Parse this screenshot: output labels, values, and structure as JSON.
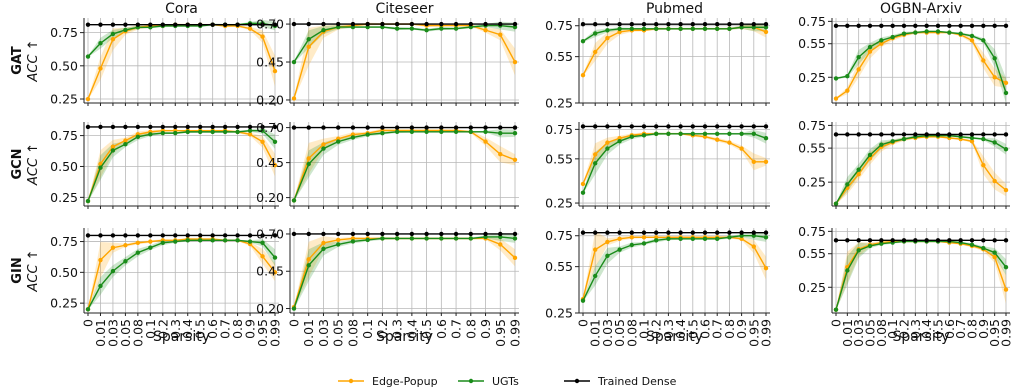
{
  "chart_data": {
    "type": "line",
    "columns": [
      "Cora",
      "Citeseer",
      "Pubmed",
      "OGBN-Arxiv"
    ],
    "rows": [
      "GAT",
      "GCN",
      "GIN"
    ],
    "row_ylabel": "ACC ↑",
    "xlabel": "Sparsity",
    "x": [
      "0",
      "0.01",
      "0.03",
      "0.05",
      "0.08",
      "0.1",
      "0.2",
      "0.3",
      "0.4",
      "0.5",
      "0.6",
      "0.7",
      "0.8",
      "0.9",
      "0.95",
      "0.99"
    ],
    "grid": true,
    "legend_position": "bottom-center",
    "series_meta": [
      {
        "name": "Edge-Popup",
        "color": "#FFA500"
      },
      {
        "name": "UGTs",
        "color": "#1A8C1A"
      },
      {
        "name": "Trained Dense",
        "color": "#000000"
      }
    ],
    "panels": [
      {
        "row": "GAT",
        "column": "Cora",
        "ylim": [
          0.22,
          0.86
        ],
        "yticks": [
          0.25,
          0.5,
          0.75
        ],
        "ytick_labels": [
          "0.25",
          "0.50",
          "0.75"
        ],
        "series": [
          {
            "name": "Edge-Popup",
            "values": [
              0.25,
              0.48,
              0.7,
              0.76,
              0.79,
              0.8,
              0.8,
              0.81,
              0.81,
              0.81,
              0.81,
              0.8,
              0.8,
              0.78,
              0.72,
              0.46
            ]
          },
          {
            "name": "UGTs",
            "values": [
              0.57,
              0.67,
              0.74,
              0.77,
              0.79,
              0.79,
              0.8,
              0.8,
              0.8,
              0.8,
              0.81,
              0.81,
              0.81,
              0.82,
              0.82,
              0.8
            ]
          },
          {
            "name": "Trained Dense",
            "values": [
              0.81,
              0.81,
              0.81,
              0.81,
              0.81,
              0.81,
              0.81,
              0.81,
              0.81,
              0.81,
              0.81,
              0.81,
              0.81,
              0.81,
              0.81,
              0.81
            ]
          }
        ]
      },
      {
        "row": "GAT",
        "column": "Citeseer",
        "ylim": [
          0.18,
          0.74
        ],
        "yticks": [
          0.2,
          0.45,
          0.7
        ],
        "ytick_labels": [
          "0.20",
          "0.45",
          "0.70"
        ],
        "series": [
          {
            "name": "Edge-Popup",
            "values": [
              0.21,
              0.55,
              0.65,
              0.68,
              0.69,
              0.7,
              0.7,
              0.7,
              0.7,
              0.69,
              0.69,
              0.69,
              0.69,
              0.66,
              0.63,
              0.45
            ]
          },
          {
            "name": "UGTs",
            "values": [
              0.45,
              0.6,
              0.66,
              0.68,
              0.68,
              0.68,
              0.68,
              0.67,
              0.67,
              0.66,
              0.67,
              0.67,
              0.68,
              0.69,
              0.69,
              0.68
            ]
          },
          {
            "name": "Trained Dense",
            "values": [
              0.7,
              0.7,
              0.7,
              0.7,
              0.7,
              0.7,
              0.7,
              0.7,
              0.7,
              0.7,
              0.7,
              0.7,
              0.7,
              0.7,
              0.7,
              0.7
            ]
          }
        ]
      },
      {
        "row": "GAT",
        "column": "Pubmed",
        "ylim": [
          0.25,
          0.8
        ],
        "yticks": [
          0.25,
          0.55,
          0.75
        ],
        "ytick_labels": [
          "0.25",
          "0.55",
          "0.75"
        ],
        "series": [
          {
            "name": "Edge-Popup",
            "values": [
              0.43,
              0.58,
              0.67,
              0.71,
              0.72,
              0.72,
              0.73,
              0.73,
              0.73,
              0.73,
              0.73,
              0.73,
              0.73,
              0.74,
              0.74,
              0.71
            ]
          },
          {
            "name": "UGTs",
            "values": [
              0.65,
              0.7,
              0.72,
              0.73,
              0.73,
              0.73,
              0.73,
              0.73,
              0.73,
              0.73,
              0.73,
              0.73,
              0.73,
              0.74,
              0.74,
              0.74
            ]
          },
          {
            "name": "Trained Dense",
            "values": [
              0.76,
              0.76,
              0.76,
              0.76,
              0.76,
              0.76,
              0.76,
              0.76,
              0.76,
              0.76,
              0.76,
              0.76,
              0.76,
              0.76,
              0.76,
              0.76
            ]
          }
        ]
      },
      {
        "row": "GAT",
        "column": "OGBN-Arxiv",
        "ylim": [
          0.02,
          0.78
        ],
        "yticks": [
          0.25,
          0.55,
          0.75
        ],
        "ytick_labels": [
          "0.25",
          "0.55",
          "0.75"
        ],
        "series": [
          {
            "name": "Edge-Popup",
            "values": [
              0.06,
              0.13,
              0.32,
              0.48,
              0.55,
              0.6,
              0.63,
              0.65,
              0.65,
              0.65,
              0.65,
              0.63,
              0.58,
              0.4,
              0.25,
              0.2
            ]
          },
          {
            "name": "UGTs",
            "values": [
              0.24,
              0.26,
              0.43,
              0.52,
              0.58,
              0.61,
              0.64,
              0.65,
              0.66,
              0.66,
              0.65,
              0.64,
              0.62,
              0.58,
              0.42,
              0.11
            ]
          },
          {
            "name": "Trained Dense",
            "values": [
              0.71,
              0.71,
              0.71,
              0.71,
              0.71,
              0.71,
              0.71,
              0.71,
              0.71,
              0.71,
              0.71,
              0.71,
              0.71,
              0.71,
              0.71,
              0.71
            ]
          }
        ]
      },
      {
        "row": "GCN",
        "column": "Cora",
        "ylim": [
          0.18,
          0.86
        ],
        "yticks": [
          0.25,
          0.5,
          0.75
        ],
        "ytick_labels": [
          "0.25",
          "0.50",
          "0.75"
        ],
        "series": [
          {
            "name": "Edge-Popup",
            "values": [
              0.22,
              0.52,
              0.66,
              0.71,
              0.76,
              0.78,
              0.79,
              0.79,
              0.79,
              0.79,
              0.79,
              0.79,
              0.78,
              0.76,
              0.7,
              0.51
            ]
          },
          {
            "name": "UGTs",
            "values": [
              0.22,
              0.49,
              0.63,
              0.68,
              0.74,
              0.76,
              0.77,
              0.77,
              0.78,
              0.78,
              0.78,
              0.78,
              0.78,
              0.79,
              0.79,
              0.7
            ]
          },
          {
            "name": "Trained Dense",
            "values": [
              0.82,
              0.82,
              0.82,
              0.82,
              0.82,
              0.82,
              0.82,
              0.82,
              0.82,
              0.82,
              0.82,
              0.82,
              0.82,
              0.82,
              0.82,
              0.82
            ]
          }
        ]
      },
      {
        "row": "GCN",
        "column": "Citeseer",
        "ylim": [
          0.14,
          0.74
        ],
        "yticks": [
          0.2,
          0.45,
          0.7
        ],
        "ytick_labels": [
          "0.20",
          "0.45",
          "0.70"
        ],
        "series": [
          {
            "name": "Edge-Popup",
            "values": [
              0.18,
              0.48,
              0.58,
              0.62,
              0.65,
              0.66,
              0.68,
              0.68,
              0.68,
              0.68,
              0.68,
              0.68,
              0.67,
              0.6,
              0.51,
              0.47
            ]
          },
          {
            "name": "UGTs",
            "values": [
              0.18,
              0.44,
              0.55,
              0.6,
              0.63,
              0.65,
              0.66,
              0.67,
              0.67,
              0.67,
              0.67,
              0.67,
              0.67,
              0.67,
              0.66,
              0.66
            ]
          },
          {
            "name": "Trained Dense",
            "values": [
              0.7,
              0.7,
              0.7,
              0.7,
              0.7,
              0.7,
              0.7,
              0.7,
              0.7,
              0.7,
              0.7,
              0.7,
              0.7,
              0.7,
              0.7,
              0.7
            ]
          }
        ]
      },
      {
        "row": "GCN",
        "column": "Pubmed",
        "ylim": [
          0.23,
          0.8
        ],
        "yticks": [
          0.25,
          0.55,
          0.75
        ],
        "ytick_labels": [
          "0.25",
          "0.55",
          "0.75"
        ],
        "series": [
          {
            "name": "Edge-Popup",
            "values": [
              0.38,
              0.58,
              0.66,
              0.69,
              0.71,
              0.72,
              0.72,
              0.72,
              0.72,
              0.71,
              0.7,
              0.68,
              0.66,
              0.62,
              0.53,
              0.53
            ]
          },
          {
            "name": "UGTs",
            "values": [
              0.32,
              0.52,
              0.62,
              0.67,
              0.7,
              0.71,
              0.72,
              0.72,
              0.72,
              0.72,
              0.72,
              0.72,
              0.72,
              0.72,
              0.72,
              0.69
            ]
          },
          {
            "name": "Trained Dense",
            "values": [
              0.77,
              0.77,
              0.77,
              0.77,
              0.77,
              0.77,
              0.77,
              0.77,
              0.77,
              0.77,
              0.77,
              0.77,
              0.77,
              0.77,
              0.77,
              0.77
            ]
          }
        ]
      },
      {
        "row": "GCN",
        "column": "OGBN-Arxiv",
        "ylim": [
          0.04,
          0.78
        ],
        "yticks": [
          0.25,
          0.55,
          0.75
        ],
        "ytick_labels": [
          "0.25",
          "0.55",
          "0.75"
        ],
        "series": [
          {
            "name": "Edge-Popup",
            "values": [
              0.06,
              0.2,
              0.32,
              0.46,
              0.56,
              0.6,
              0.63,
              0.64,
              0.65,
              0.65,
              0.64,
              0.63,
              0.61,
              0.4,
              0.26,
              0.18
            ]
          },
          {
            "name": "UGTs",
            "values": [
              0.06,
              0.23,
              0.36,
              0.49,
              0.58,
              0.61,
              0.63,
              0.65,
              0.66,
              0.66,
              0.66,
              0.65,
              0.64,
              0.63,
              0.6,
              0.54
            ]
          },
          {
            "name": "Trained Dense",
            "values": [
              0.67,
              0.67,
              0.67,
              0.67,
              0.67,
              0.67,
              0.67,
              0.67,
              0.67,
              0.67,
              0.67,
              0.67,
              0.67,
              0.67,
              0.67,
              0.67
            ]
          }
        ]
      },
      {
        "row": "GIN",
        "column": "Cora",
        "ylim": [
          0.17,
          0.86
        ],
        "yticks": [
          0.25,
          0.5,
          0.75
        ],
        "ytick_labels": [
          "0.25",
          "0.50",
          "0.75"
        ],
        "series": [
          {
            "name": "Edge-Popup",
            "values": [
              0.2,
              0.6,
              0.7,
              0.72,
              0.74,
              0.75,
              0.76,
              0.76,
              0.77,
              0.77,
              0.77,
              0.76,
              0.76,
              0.73,
              0.63,
              0.5
            ]
          },
          {
            "name": "UGTs",
            "values": [
              0.2,
              0.39,
              0.51,
              0.59,
              0.66,
              0.7,
              0.74,
              0.75,
              0.76,
              0.76,
              0.76,
              0.76,
              0.76,
              0.75,
              0.74,
              0.62
            ]
          },
          {
            "name": "Trained Dense",
            "values": [
              0.8,
              0.8,
              0.8,
              0.8,
              0.8,
              0.8,
              0.8,
              0.8,
              0.8,
              0.8,
              0.8,
              0.8,
              0.8,
              0.8,
              0.8,
              0.8
            ]
          }
        ]
      },
      {
        "row": "GIN",
        "column": "Citeseer",
        "ylim": [
          0.17,
          0.74
        ],
        "yticks": [
          0.2,
          0.45,
          0.7
        ],
        "ytick_labels": [
          "0.20",
          "0.45",
          "0.70"
        ],
        "series": [
          {
            "name": "Edge-Popup",
            "values": [
              0.21,
              0.53,
              0.64,
              0.66,
              0.67,
              0.67,
              0.67,
              0.67,
              0.67,
              0.67,
              0.67,
              0.67,
              0.67,
              0.67,
              0.63,
              0.54
            ]
          },
          {
            "name": "UGTs",
            "values": [
              0.2,
              0.49,
              0.6,
              0.63,
              0.65,
              0.66,
              0.67,
              0.67,
              0.67,
              0.67,
              0.67,
              0.67,
              0.67,
              0.68,
              0.68,
              0.67
            ]
          },
          {
            "name": "Trained Dense",
            "values": [
              0.7,
              0.7,
              0.7,
              0.7,
              0.7,
              0.7,
              0.7,
              0.7,
              0.7,
              0.7,
              0.7,
              0.7,
              0.7,
              0.7,
              0.7,
              0.7
            ]
          }
        ]
      },
      {
        "row": "GIN",
        "column": "Pubmed",
        "ylim": [
          0.25,
          0.8
        ],
        "yticks": [
          0.25,
          0.55,
          0.75
        ],
        "ytick_labels": [
          "0.25",
          "0.55",
          "0.75"
        ],
        "series": [
          {
            "name": "Edge-Popup",
            "values": [
              0.34,
              0.66,
              0.71,
              0.73,
              0.74,
              0.74,
              0.74,
              0.74,
              0.74,
              0.74,
              0.74,
              0.74,
              0.74,
              0.73,
              0.68,
              0.54
            ]
          },
          {
            "name": "UGTs",
            "values": [
              0.33,
              0.49,
              0.62,
              0.66,
              0.69,
              0.7,
              0.72,
              0.73,
              0.73,
              0.73,
              0.73,
              0.73,
              0.74,
              0.75,
              0.75,
              0.74
            ]
          },
          {
            "name": "Trained Dense",
            "values": [
              0.77,
              0.77,
              0.77,
              0.77,
              0.77,
              0.77,
              0.77,
              0.77,
              0.77,
              0.77,
              0.77,
              0.77,
              0.77,
              0.77,
              0.77,
              0.77
            ]
          }
        ]
      },
      {
        "row": "GIN",
        "column": "OGBN-Arxiv",
        "ylim": [
          0.02,
          0.78
        ],
        "yticks": [
          0.25,
          0.55,
          0.75
        ],
        "ytick_labels": [
          "0.25",
          "0.55",
          "0.75"
        ],
        "series": [
          {
            "name": "Edge-Popup",
            "values": [
              0.05,
              0.43,
              0.59,
              0.63,
              0.65,
              0.66,
              0.66,
              0.66,
              0.66,
              0.66,
              0.65,
              0.64,
              0.62,
              0.59,
              0.52,
              0.23
            ]
          },
          {
            "name": "UGTs",
            "values": [
              0.05,
              0.4,
              0.58,
              0.62,
              0.64,
              0.65,
              0.66,
              0.66,
              0.66,
              0.66,
              0.66,
              0.65,
              0.63,
              0.6,
              0.56,
              0.43
            ]
          },
          {
            "name": "Trained Dense",
            "values": [
              0.67,
              0.67,
              0.67,
              0.67,
              0.67,
              0.67,
              0.67,
              0.67,
              0.67,
              0.67,
              0.67,
              0.67,
              0.67,
              0.67,
              0.67,
              0.67
            ]
          }
        ]
      }
    ]
  }
}
